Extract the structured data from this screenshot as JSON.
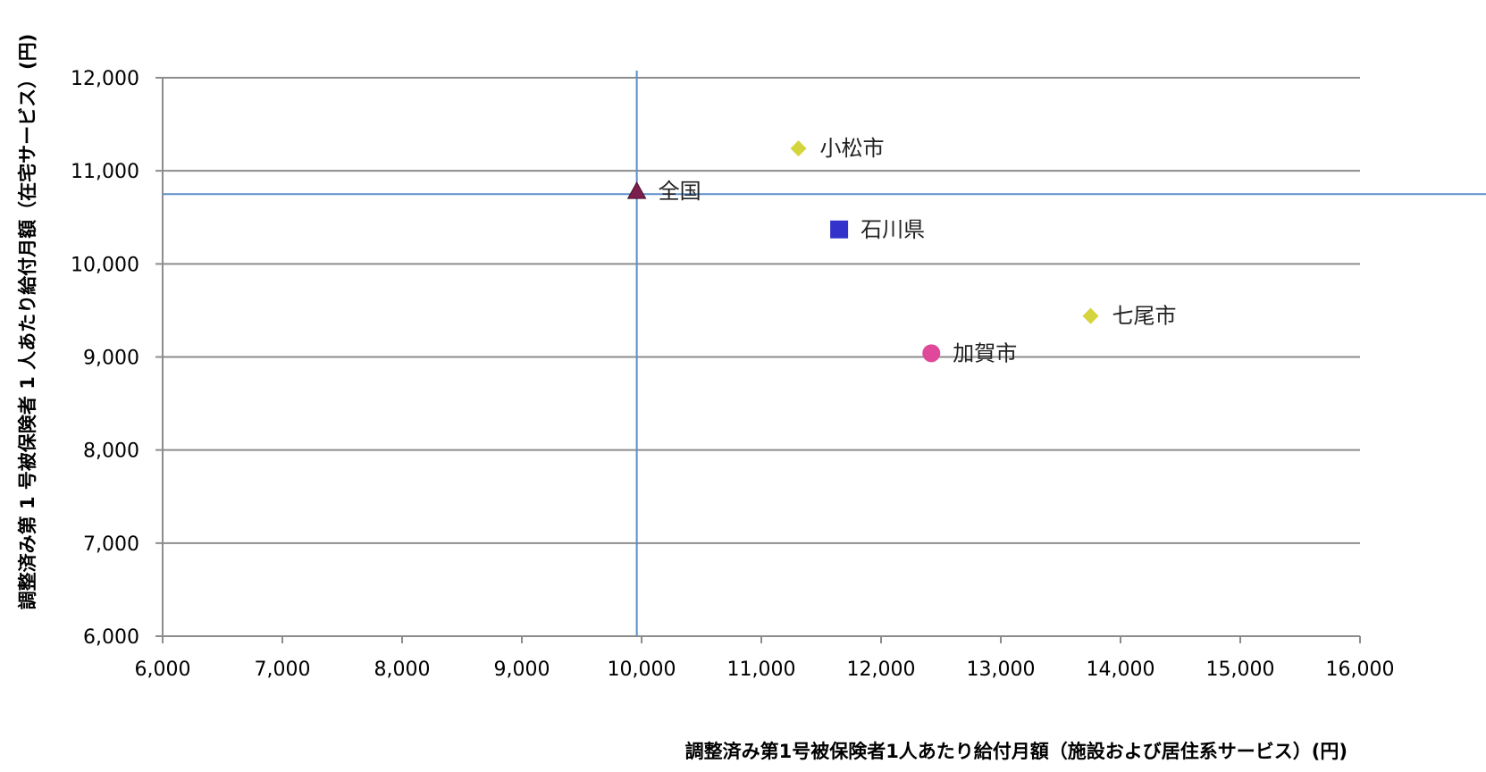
{
  "chart_data": {
    "type": "scatter",
    "xlabel": "調整済み第1号被保険者1人あたり給付月額（施設および居住系サービス）(円)",
    "ylabel": "調整済み第 1 号被保険者 1 人あたり給付月額（在宅サービス）(円)",
    "xlim": [
      6000,
      16000
    ],
    "ylim": [
      6000,
      12000
    ],
    "x_ticks": [
      6000,
      7000,
      8000,
      9000,
      10000,
      11000,
      12000,
      13000,
      14000,
      15000,
      16000
    ],
    "y_ticks": [
      6000,
      7000,
      8000,
      9000,
      10000,
      11000,
      12000
    ],
    "x_tick_labels": [
      "6,000",
      "7,000",
      "8,000",
      "9,000",
      "10,000",
      "11,000",
      "12,000",
      "13,000",
      "14,000",
      "15,000",
      "16,000"
    ],
    "y_tick_labels": [
      "6,000",
      "7,000",
      "8,000",
      "9,000",
      "10,000",
      "11,000",
      "12,000"
    ],
    "grid": "horizontal",
    "reference_lines": {
      "x": 9960,
      "y": 10750,
      "color": "#5b8fc9"
    },
    "points": [
      {
        "label": "全国",
        "x": 9960,
        "y": 10780,
        "marker": "triangle",
        "color": "#7a1f4e"
      },
      {
        "label": "小松市",
        "x": 11310,
        "y": 11240,
        "marker": "diamond",
        "color": "#d4d43c"
      },
      {
        "label": "石川県",
        "x": 11650,
        "y": 10370,
        "marker": "square",
        "color": "#3333cc"
      },
      {
        "label": "七尾市",
        "x": 13750,
        "y": 9440,
        "marker": "diamond",
        "color": "#d4d43c"
      },
      {
        "label": "加賀市",
        "x": 12420,
        "y": 9040,
        "marker": "circle",
        "color": "#e0489a"
      }
    ]
  }
}
